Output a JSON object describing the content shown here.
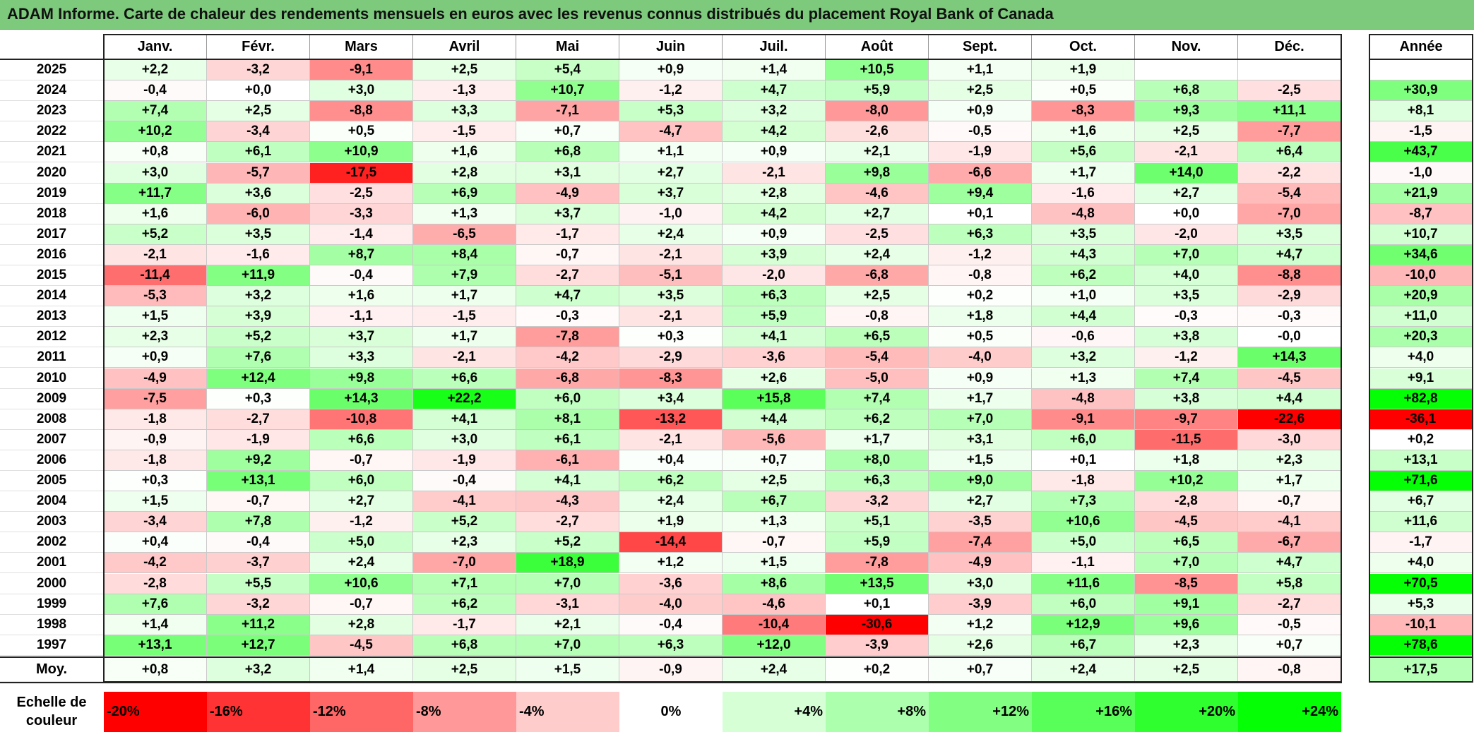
{
  "chart_data": {
    "type": "heatmap",
    "title": "ADAM Informe. Carte de chaleur des rendements mensuels en euros avec les revenus connus distribués du placement Royal Bank of Canada",
    "months": [
      "Janv.",
      "Févr.",
      "Mars",
      "Avril",
      "Mai",
      "Juin",
      "Juil.",
      "Août",
      "Sept.",
      "Oct.",
      "Nov.",
      "Déc."
    ],
    "year_header": "Année",
    "rows": [
      {
        "year": "2025",
        "months": [
          "+2,2",
          "-3,2",
          "-9,1",
          "+2,5",
          "+5,4",
          "+0,9",
          "+1,4",
          "+10,5",
          "+1,1",
          "+1,9",
          "",
          ""
        ],
        "annual": ""
      },
      {
        "year": "2024",
        "months": [
          "-0,4",
          "+0,0",
          "+3,0",
          "-1,3",
          "+10,7",
          "-1,2",
          "+4,7",
          "+5,9",
          "+2,5",
          "+0,5",
          "+6,8",
          "-2,5"
        ],
        "annual": "+30,9"
      },
      {
        "year": "2023",
        "months": [
          "+7,4",
          "+2,5",
          "-8,8",
          "+3,3",
          "-7,1",
          "+5,3",
          "+3,2",
          "-8,0",
          "+0,9",
          "-8,3",
          "+9,3",
          "+11,1"
        ],
        "annual": "+8,1"
      },
      {
        "year": "2022",
        "months": [
          "+10,2",
          "-3,4",
          "+0,5",
          "-1,5",
          "+0,7",
          "-4,7",
          "+4,2",
          "-2,6",
          "-0,5",
          "+1,6",
          "+2,5",
          "-7,7"
        ],
        "annual": "-1,5"
      },
      {
        "year": "2021",
        "months": [
          "+0,8",
          "+6,1",
          "+10,9",
          "+1,6",
          "+6,8",
          "+1,1",
          "+0,9",
          "+2,1",
          "-1,9",
          "+5,6",
          "-2,1",
          "+6,4"
        ],
        "annual": "+43,7"
      },
      {
        "year": "2020",
        "months": [
          "+3,0",
          "-5,7",
          "-17,5",
          "+2,8",
          "+3,1",
          "+2,7",
          "-2,1",
          "+9,8",
          "-6,6",
          "+1,7",
          "+14,0",
          "-2,2"
        ],
        "annual": "-1,0"
      },
      {
        "year": "2019",
        "months": [
          "+11,7",
          "+3,6",
          "-2,5",
          "+6,9",
          "-4,9",
          "+3,7",
          "+2,8",
          "-4,6",
          "+9,4",
          "-1,6",
          "+2,7",
          "-5,4"
        ],
        "annual": "+21,9"
      },
      {
        "year": "2018",
        "months": [
          "+1,6",
          "-6,0",
          "-3,3",
          "+1,3",
          "+3,7",
          "-1,0",
          "+4,2",
          "+2,7",
          "+0,1",
          "-4,8",
          "+0,0",
          "-7,0"
        ],
        "annual": "-8,7"
      },
      {
        "year": "2017",
        "months": [
          "+5,2",
          "+3,5",
          "-1,4",
          "-6,5",
          "-1,7",
          "+2,4",
          "+0,9",
          "-2,5",
          "+6,3",
          "+3,5",
          "-2,0",
          "+3,5"
        ],
        "annual": "+10,7"
      },
      {
        "year": "2016",
        "months": [
          "-2,1",
          "-1,6",
          "+8,7",
          "+8,4",
          "-0,7",
          "-2,1",
          "+3,9",
          "+2,4",
          "-1,2",
          "+4,3",
          "+7,0",
          "+4,7"
        ],
        "annual": "+34,6"
      },
      {
        "year": "2015",
        "months": [
          "-11,4",
          "+11,9",
          "-0,4",
          "+7,9",
          "-2,7",
          "-5,1",
          "-2,0",
          "-6,8",
          "-0,8",
          "+6,2",
          "+4,0",
          "-8,8"
        ],
        "annual": "-10,0"
      },
      {
        "year": "2014",
        "months": [
          "-5,3",
          "+3,2",
          "+1,6",
          "+1,7",
          "+4,7",
          "+3,5",
          "+6,3",
          "+2,5",
          "+0,2",
          "+1,0",
          "+3,5",
          "-2,9"
        ],
        "annual": "+20,9"
      },
      {
        "year": "2013",
        "months": [
          "+1,5",
          "+3,9",
          "-1,1",
          "-1,5",
          "-0,3",
          "-2,1",
          "+5,9",
          "-0,8",
          "+1,8",
          "+4,4",
          "-0,3",
          "-0,3"
        ],
        "annual": "+11,0"
      },
      {
        "year": "2012",
        "months": [
          "+2,3",
          "+5,2",
          "+3,7",
          "+1,7",
          "-7,8",
          "+0,3",
          "+4,1",
          "+6,5",
          "+0,5",
          "-0,6",
          "+3,8",
          "-0,0"
        ],
        "annual": "+20,3"
      },
      {
        "year": "2011",
        "months": [
          "+0,9",
          "+7,6",
          "+3,3",
          "-2,1",
          "-4,2",
          "-2,9",
          "-3,6",
          "-5,4",
          "-4,0",
          "+3,2",
          "-1,2",
          "+14,3"
        ],
        "annual": "+4,0"
      },
      {
        "year": "2010",
        "months": [
          "-4,9",
          "+12,4",
          "+9,8",
          "+6,6",
          "-6,8",
          "-8,3",
          "+2,6",
          "-5,0",
          "+0,9",
          "+1,3",
          "+7,4",
          "-4,5"
        ],
        "annual": "+9,1"
      },
      {
        "year": "2009",
        "months": [
          "-7,5",
          "+0,3",
          "+14,3",
          "+22,2",
          "+6,0",
          "+3,4",
          "+15,8",
          "+7,4",
          "+1,7",
          "-4,8",
          "+3,8",
          "+4,4"
        ],
        "annual": "+82,8"
      },
      {
        "year": "2008",
        "months": [
          "-1,8",
          "-2,7",
          "-10,8",
          "+4,1",
          "+8,1",
          "-13,2",
          "+4,4",
          "+6,2",
          "+7,0",
          "-9,1",
          "-9,7",
          "-22,6"
        ],
        "annual": "-36,1"
      },
      {
        "year": "2007",
        "months": [
          "-0,9",
          "-1,9",
          "+6,6",
          "+3,0",
          "+6,1",
          "-2,1",
          "-5,6",
          "+1,7",
          "+3,1",
          "+6,0",
          "-11,5",
          "-3,0"
        ],
        "annual": "+0,2"
      },
      {
        "year": "2006",
        "months": [
          "-1,8",
          "+9,2",
          "-0,7",
          "-1,9",
          "-6,1",
          "+0,4",
          "+0,7",
          "+8,0",
          "+1,5",
          "+0,1",
          "+1,8",
          "+2,3"
        ],
        "annual": "+13,1"
      },
      {
        "year": "2005",
        "months": [
          "+0,3",
          "+13,1",
          "+6,0",
          "-0,4",
          "+4,1",
          "+6,2",
          "+2,5",
          "+6,3",
          "+9,0",
          "-1,8",
          "+10,2",
          "+1,7"
        ],
        "annual": "+71,6"
      },
      {
        "year": "2004",
        "months": [
          "+1,5",
          "-0,7",
          "+2,7",
          "-4,1",
          "-4,3",
          "+2,4",
          "+6,7",
          "-3,2",
          "+2,7",
          "+7,3",
          "-2,8",
          "-0,7"
        ],
        "annual": "+6,7"
      },
      {
        "year": "2003",
        "months": [
          "-3,4",
          "+7,8",
          "-1,2",
          "+5,2",
          "-2,7",
          "+1,9",
          "+1,3",
          "+5,1",
          "-3,5",
          "+10,6",
          "-4,5",
          "-4,1"
        ],
        "annual": "+11,6"
      },
      {
        "year": "2002",
        "months": [
          "+0,4",
          "-0,4",
          "+5,0",
          "+2,3",
          "+5,2",
          "-14,4",
          "-0,7",
          "+5,9",
          "-7,4",
          "+5,0",
          "+6,5",
          "-6,7"
        ],
        "annual": "-1,7"
      },
      {
        "year": "2001",
        "months": [
          "-4,2",
          "-3,7",
          "+2,4",
          "-7,0",
          "+18,9",
          "+1,2",
          "+1,5",
          "-7,8",
          "-4,9",
          "-1,1",
          "+7,0",
          "+4,7"
        ],
        "annual": "+4,0"
      },
      {
        "year": "2000",
        "months": [
          "-2,8",
          "+5,5",
          "+10,6",
          "+7,1",
          "+7,0",
          "-3,6",
          "+8,6",
          "+13,5",
          "+3,0",
          "+11,6",
          "-8,5",
          "+5,8"
        ],
        "annual": "+70,5"
      },
      {
        "year": "1999",
        "months": [
          "+7,6",
          "-3,2",
          "-0,7",
          "+6,2",
          "-3,1",
          "-4,0",
          "-4,6",
          "+0,1",
          "-3,9",
          "+6,0",
          "+9,1",
          "-2,7"
        ],
        "annual": "+5,3"
      },
      {
        "year": "1998",
        "months": [
          "+1,4",
          "+11,2",
          "+2,8",
          "-1,7",
          "+2,1",
          "-0,4",
          "-10,4",
          "-30,6",
          "+1,2",
          "+12,9",
          "+9,6",
          "-0,5"
        ],
        "annual": "-10,1"
      },
      {
        "year": "1997",
        "months": [
          "+13,1",
          "+12,7",
          "-4,5",
          "+6,8",
          "+7,0",
          "+6,3",
          "+12,0",
          "-3,9",
          "+2,6",
          "+6,7",
          "+2,3",
          "+0,7"
        ],
        "annual": "+78,6"
      }
    ],
    "average": {
      "label": "Moy.",
      "months": [
        "+0,8",
        "+3,2",
        "+1,4",
        "+2,5",
        "+1,5",
        "-0,9",
        "+2,4",
        "+0,2",
        "+0,7",
        "+2,4",
        "+2,5",
        "-0,8"
      ],
      "annual": "+17,5"
    },
    "color_scale": {
      "label_line1": "Echelle de",
      "label_line2": "couleur",
      "stops": [
        {
          "label": "-20%",
          "value": -20,
          "color": "#ff0000"
        },
        {
          "label": "-16%",
          "value": -16,
          "color": "#ff3333"
        },
        {
          "label": "-12%",
          "value": -12,
          "color": "#ff6666"
        },
        {
          "label": "-8%",
          "value": -8,
          "color": "#ff9999"
        },
        {
          "label": "-4%",
          "value": -4,
          "color": "#ffcccc"
        },
        {
          "label": "0%",
          "value": 0,
          "color": "#ffffff"
        },
        {
          "label": "+4%",
          "value": 4,
          "color": "#d6ffd6"
        },
        {
          "label": "+8%",
          "value": 8,
          "color": "#acffac"
        },
        {
          "label": "+12%",
          "value": 12,
          "color": "#82ff82"
        },
        {
          "label": "+16%",
          "value": 16,
          "color": "#59ff59"
        },
        {
          "label": "+20%",
          "value": 20,
          "color": "#2fff2f"
        },
        {
          "label": "+24%",
          "value": 24,
          "color": "#05ff05"
        }
      ]
    }
  }
}
